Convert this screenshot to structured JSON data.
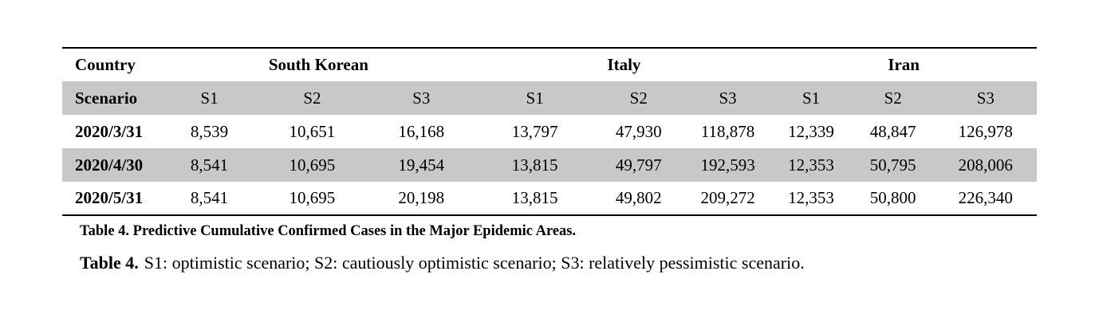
{
  "table": {
    "country_label": "Country",
    "scenario_label": "Scenario",
    "countries": [
      {
        "name": "South Korean",
        "scenarios": [
          "S1",
          "S2",
          "S3"
        ]
      },
      {
        "name": "Italy",
        "scenarios": [
          "S1",
          "S2",
          "S3"
        ]
      },
      {
        "name": "Iran",
        "scenarios": [
          "S1",
          "S2",
          "S3"
        ]
      }
    ],
    "rows": [
      {
        "date": "2020/3/31",
        "values": [
          "8,539",
          "10,651",
          "16,168",
          "13,797",
          "47,930",
          "118,878",
          "12,339",
          "48,847",
          "126,978"
        ]
      },
      {
        "date": "2020/4/30",
        "values": [
          "8,541",
          "10,695",
          "19,454",
          "13,815",
          "49,797",
          "192,593",
          "12,353",
          "50,795",
          "208,006"
        ]
      },
      {
        "date": "2020/5/31",
        "values": [
          "8,541",
          "10,695",
          "20,198",
          "13,815",
          "49,802",
          "209,272",
          "12,353",
          "50,800",
          "226,340"
        ]
      }
    ],
    "colors": {
      "stripe": "#c8c8c8",
      "rule": "#000000",
      "text": "#000000"
    },
    "column_widths_percent": [
      10.0,
      10.2,
      10.9,
      11.5,
      11.8,
      9.5,
      8.8,
      8.3,
      8.5,
      10.5
    ]
  },
  "captions": {
    "table_caption": "Table 4. Predictive Cumulative Confirmed Cases in the Major Epidemic Areas.",
    "note_label": "Table 4.",
    "note_text": "S1: optimistic scenario; S2: cautiously optimistic scenario; S3: relatively pessimistic scenario."
  }
}
